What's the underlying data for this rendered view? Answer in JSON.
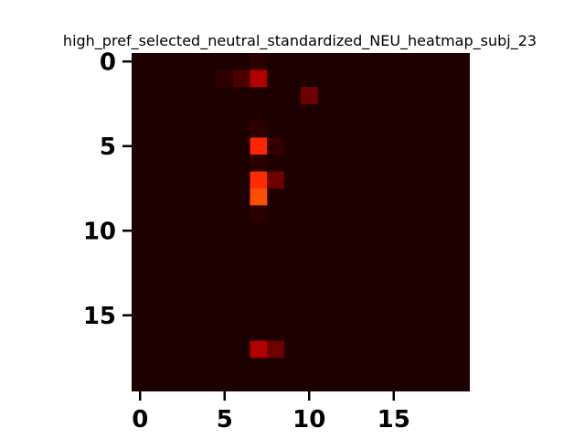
{
  "chart_data": {
    "type": "heatmap",
    "title": "high_pref_selected_neutral_standardized_NEU_heatmap_subj_23",
    "xlabel": "",
    "ylabel": "",
    "n_rows": 20,
    "n_cols": 20,
    "xlim": [
      -0.5,
      19.5
    ],
    "ylim": [
      19.5,
      -0.5
    ],
    "x_ticks": [
      0,
      5,
      10,
      15
    ],
    "y_ticks": [
      0,
      5,
      10,
      15
    ],
    "x_tick_labels": [
      "0",
      "5",
      "10",
      "15"
    ],
    "y_tick_labels": [
      "0",
      "5",
      "10",
      "15"
    ],
    "colormap": "hot",
    "grid": false,
    "background_value": 0.03,
    "cells": [
      {
        "row": 0,
        "col": 7,
        "value": 0.05
      },
      {
        "row": 1,
        "col": 5,
        "value": 0.05
      },
      {
        "row": 1,
        "col": 6,
        "value": 0.1
      },
      {
        "row": 1,
        "col": 7,
        "value": 0.25
      },
      {
        "row": 2,
        "col": 10,
        "value": 0.15
      },
      {
        "row": 4,
        "col": 7,
        "value": 0.05
      },
      {
        "row": 5,
        "col": 7,
        "value": 0.42
      },
      {
        "row": 5,
        "col": 8,
        "value": 0.06
      },
      {
        "row": 6,
        "col": 7,
        "value": 0.05
      },
      {
        "row": 7,
        "col": 7,
        "value": 0.43
      },
      {
        "row": 7,
        "col": 8,
        "value": 0.15
      },
      {
        "row": 8,
        "col": 7,
        "value": 0.48
      },
      {
        "row": 9,
        "col": 7,
        "value": 0.05
      },
      {
        "row": 17,
        "col": 7,
        "value": 0.25
      },
      {
        "row": 17,
        "col": 8,
        "value": 0.15
      }
    ]
  }
}
